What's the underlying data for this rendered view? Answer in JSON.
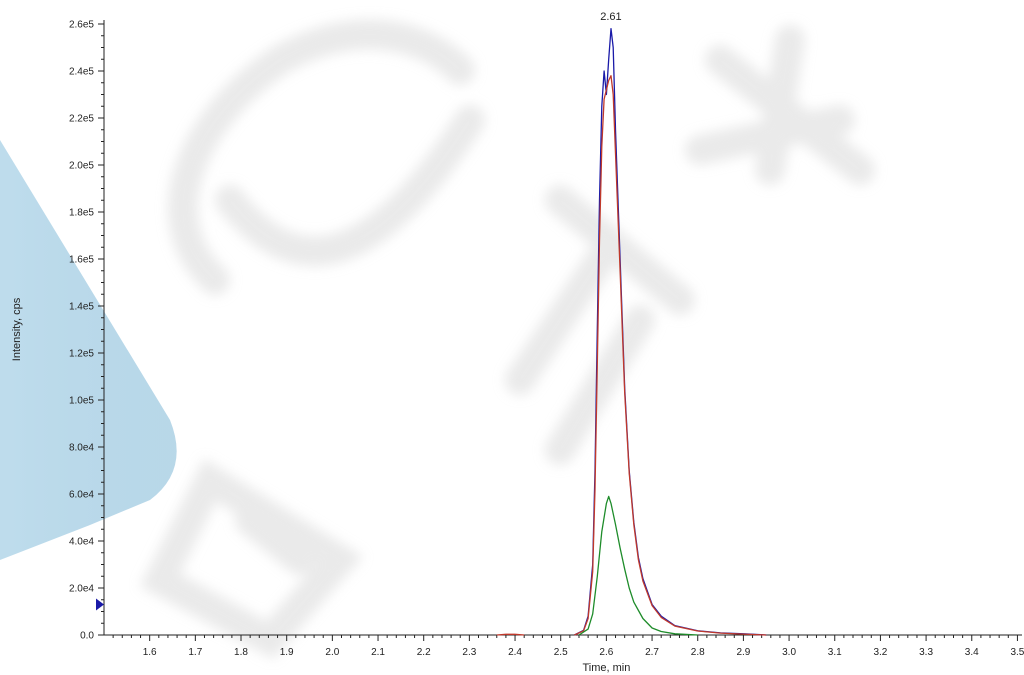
{
  "chart_data": {
    "type": "line",
    "title": "",
    "xlabel": "Time, min",
    "ylabel": "Intensity, cps",
    "xlim": [
      1.5,
      3.51
    ],
    "ylim": [
      0,
      260000
    ],
    "x_ticks": [
      {
        "value": 1.6,
        "label": "1.6"
      },
      {
        "value": 1.7,
        "label": "1.7"
      },
      {
        "value": 1.8,
        "label": "1.8"
      },
      {
        "value": 1.9,
        "label": "1.9"
      },
      {
        "value": 2.0,
        "label": "2.0"
      },
      {
        "value": 2.1,
        "label": "2.1"
      },
      {
        "value": 2.2,
        "label": "2.2"
      },
      {
        "value": 2.3,
        "label": "2.3"
      },
      {
        "value": 2.4,
        "label": "2.4"
      },
      {
        "value": 2.5,
        "label": "2.5"
      },
      {
        "value": 2.6,
        "label": "2.6"
      },
      {
        "value": 2.7,
        "label": "2.7"
      },
      {
        "value": 2.8,
        "label": "2.8"
      },
      {
        "value": 2.9,
        "label": "2.9"
      },
      {
        "value": 3.0,
        "label": "3.0"
      },
      {
        "value": 3.1,
        "label": "3.1"
      },
      {
        "value": 3.2,
        "label": "3.2"
      },
      {
        "value": 3.3,
        "label": "3.3"
      },
      {
        "value": 3.4,
        "label": "3.4"
      },
      {
        "value": 3.5,
        "label": "3.5"
      }
    ],
    "y_ticks": [
      {
        "value": 0,
        "label": "0.0"
      },
      {
        "value": 20000,
        "label": "2.0e4"
      },
      {
        "value": 40000,
        "label": "4.0e4"
      },
      {
        "value": 60000,
        "label": "6.0e4"
      },
      {
        "value": 80000,
        "label": "8.0e4"
      },
      {
        "value": 100000,
        "label": "1.0e5"
      },
      {
        "value": 120000,
        "label": "1.2e5"
      },
      {
        "value": 140000,
        "label": "1.4e5"
      },
      {
        "value": 160000,
        "label": "1.6e5"
      },
      {
        "value": 180000,
        "label": "1.8e5"
      },
      {
        "value": 200000,
        "label": "2.0e5"
      },
      {
        "value": 220000,
        "label": "2.2e5"
      },
      {
        "value": 240000,
        "label": "2.4e5"
      },
      {
        "value": 260000,
        "label": "2.6e5"
      }
    ],
    "annotations": [
      {
        "x": 2.61,
        "y": 260000,
        "text": "2.61"
      }
    ],
    "marker": {
      "y": 13000
    },
    "grid": false,
    "legend": "none",
    "series": [
      {
        "color": "#1a1aa8",
        "x": [
          2.53,
          2.55,
          2.56,
          2.57,
          2.575,
          2.58,
          2.585,
          2.59,
          2.595,
          2.6,
          2.605,
          2.61,
          2.615,
          2.62,
          2.63,
          2.64,
          2.65,
          2.66,
          2.67,
          2.68,
          2.7,
          2.72,
          2.75,
          2.8,
          2.85,
          2.9,
          2.95
        ],
        "y": [
          0,
          2000,
          8000,
          30000,
          70000,
          130000,
          185000,
          225000,
          240000,
          230000,
          245000,
          258000,
          250000,
          215000,
          160000,
          105000,
          70000,
          48000,
          33000,
          24000,
          13000,
          8000,
          4000,
          1800,
          900,
          500,
          0
        ]
      },
      {
        "color": "#c0392b",
        "x": [
          2.53,
          2.55,
          2.56,
          2.57,
          2.575,
          2.58,
          2.585,
          2.59,
          2.595,
          2.6,
          2.605,
          2.61,
          2.615,
          2.62,
          2.63,
          2.64,
          2.65,
          2.66,
          2.67,
          2.68,
          2.7,
          2.72,
          2.75,
          2.8,
          2.85,
          2.9,
          2.95
        ],
        "y": [
          0,
          1800,
          7000,
          27000,
          62000,
          115000,
          168000,
          208000,
          228000,
          232000,
          236000,
          238000,
          230000,
          205000,
          155000,
          103000,
          69000,
          47000,
          32000,
          23000,
          12500,
          7500,
          3800,
          1700,
          800,
          400,
          0
        ]
      },
      {
        "color": "#1e8c2a",
        "x": [
          2.54,
          2.56,
          2.57,
          2.58,
          2.59,
          2.6,
          2.605,
          2.61,
          2.62,
          2.63,
          2.64,
          2.65,
          2.66,
          2.68,
          2.7,
          2.72,
          2.75,
          2.8
        ],
        "y": [
          0,
          2500,
          9000,
          25000,
          44000,
          56000,
          59000,
          56000,
          47000,
          37000,
          28000,
          20000,
          14000,
          7000,
          3000,
          1500,
          500,
          0
        ]
      },
      {
        "color": "#c0392b",
        "x": [
          2.36,
          2.38,
          2.4,
          2.42
        ],
        "y": [
          0,
          300,
          300,
          0
        ]
      }
    ]
  }
}
